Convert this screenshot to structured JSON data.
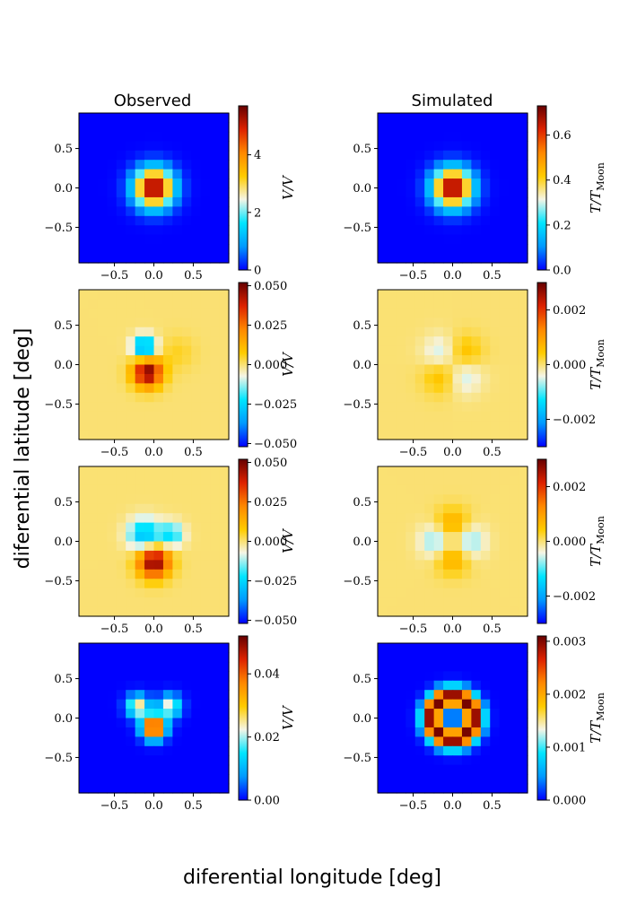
{
  "figure": {
    "xlabel": "diferential longitude [deg]",
    "ylabel": "diferential latitude [deg]",
    "column_titles": [
      "Observed",
      "Simulated"
    ]
  },
  "chart_data": {
    "type": "heatmap",
    "grid_n": 16,
    "extent": [
      -0.95,
      0.95
    ],
    "xticks": [
      "−0.5",
      "0.0",
      "0.5"
    ],
    "xtick_values": [
      -0.5,
      0.0,
      0.5
    ],
    "yticks": [
      "0.5",
      "0.0",
      "−0.5"
    ],
    "ytick_values": [
      0.5,
      0.0,
      -0.5
    ],
    "colormap": [
      "#0000ff",
      "#0099ff",
      "#00e5ff",
      "#f5f5e6",
      "#ffcc00",
      "#ff8800",
      "#dd2200",
      "#660000"
    ],
    "panels": [
      {
        "row": 0,
        "col": 0,
        "pattern": "gauss",
        "vmin": 0,
        "vmax": 5.7,
        "cb_ticks": [
          0,
          2,
          4
        ],
        "cb_tick_labels": [
          "0",
          "2",
          "4"
        ],
        "cb_label": "V/V"
      },
      {
        "row": 0,
        "col": 1,
        "pattern": "gauss",
        "vmin": 0,
        "vmax": 0.73,
        "cb_ticks": [
          0,
          0.2,
          0.4,
          0.6
        ],
        "cb_tick_labels": [
          "0.0",
          "0.2",
          "0.4",
          "0.6"
        ],
        "cb_label": "T/T_Moon"
      },
      {
        "row": 1,
        "col": 0,
        "pattern": "obs_q1",
        "vmin": -0.052,
        "vmax": 0.052,
        "cb_ticks": [
          0.05,
          0.025,
          0,
          -0.025,
          -0.05
        ],
        "cb_tick_labels": [
          "0.050",
          "0.025",
          "0.000",
          "−0.025",
          "−0.050"
        ],
        "cb_label": "V/V"
      },
      {
        "row": 1,
        "col": 1,
        "pattern": "quad_diag",
        "vmin": -0.003,
        "vmax": 0.003,
        "cb_ticks": [
          0.002,
          0,
          -0.002
        ],
        "cb_tick_labels": [
          "0.002",
          "0.000",
          "−0.002"
        ],
        "cb_label": "T/T_Moon"
      },
      {
        "row": 2,
        "col": 0,
        "pattern": "obs_q2",
        "vmin": -0.052,
        "vmax": 0.052,
        "cb_ticks": [
          0.05,
          0.025,
          0,
          -0.025,
          -0.05
        ],
        "cb_tick_labels": [
          "0.050",
          "0.025",
          "0.000",
          "−0.025",
          "−0.050"
        ],
        "cb_label": "V/V"
      },
      {
        "row": 2,
        "col": 1,
        "pattern": "quad_axis",
        "vmin": -0.003,
        "vmax": 0.003,
        "cb_ticks": [
          0.002,
          0,
          -0.002
        ],
        "cb_tick_labels": [
          "0.002",
          "0.000",
          "−0.002"
        ],
        "cb_label": "T/T_Moon"
      },
      {
        "row": 3,
        "col": 0,
        "pattern": "obs_pol",
        "vmin": 0,
        "vmax": 0.052,
        "cb_ticks": [
          0.04,
          0.02,
          0
        ],
        "cb_tick_labels": [
          "0.04",
          "0.02",
          "0.00"
        ],
        "cb_label": "V/V"
      },
      {
        "row": 3,
        "col": 1,
        "pattern": "ring",
        "vmin": 0,
        "vmax": 0.0031,
        "cb_ticks": [
          0.003,
          0.002,
          0.001,
          0
        ],
        "cb_tick_labels": [
          "0.003",
          "0.002",
          "0.001",
          "0.000"
        ],
        "cb_label": "T/T_Moon"
      }
    ]
  }
}
